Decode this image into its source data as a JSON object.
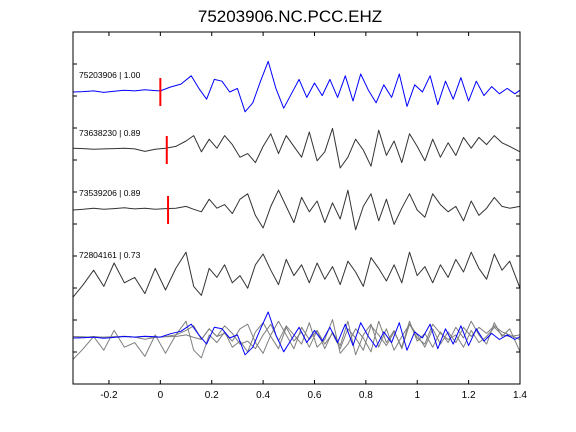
{
  "chart_data": {
    "type": "line",
    "title": "75203906.NC.PCC.EHZ",
    "xlabel": "",
    "ylabel": "",
    "xlim": [
      -0.34,
      1.4
    ],
    "xticks": [
      -0.2,
      0,
      0.2,
      0.4,
      0.6,
      0.8,
      1,
      1.2,
      1.4
    ],
    "xtick_labels": [
      "-0.2",
      "0",
      "0.2",
      "0.4",
      "0.6",
      "0.8",
      "1",
      "1.2",
      "1.4"
    ],
    "grid": false,
    "legend": "none",
    "colors": {
      "reference": "#0000ff",
      "other": "#333333",
      "overlay_other": "#7f7f7f",
      "pick": "#ff0000"
    },
    "series": [
      {
        "label": "75203906 | 1.00",
        "color": "#0000ff",
        "pick_time": 0.0,
        "x": [
          -0.34,
          -0.3,
          -0.26,
          -0.22,
          -0.18,
          -0.14,
          -0.1,
          -0.06,
          -0.02,
          0,
          0.04,
          0.08,
          0.12,
          0.15,
          0.18,
          0.21,
          0.24,
          0.27,
          0.3,
          0.33,
          0.36,
          0.39,
          0.42,
          0.45,
          0.48,
          0.51,
          0.54,
          0.57,
          0.6,
          0.63,
          0.66,
          0.69,
          0.72,
          0.75,
          0.78,
          0.81,
          0.84,
          0.87,
          0.9,
          0.93,
          0.96,
          0.99,
          1.02,
          1.05,
          1.08,
          1.11,
          1.14,
          1.17,
          1.2,
          1.23,
          1.26,
          1.29,
          1.32,
          1.35,
          1.38,
          1.4
        ],
        "y": [
          0,
          0.01,
          0.03,
          -0.01,
          0.02,
          0.05,
          0.03,
          0.06,
          0.04,
          0.03,
          0.14,
          0.22,
          0.45,
          0.1,
          -0.2,
          0.35,
          0.3,
          0.0,
          0.1,
          -0.55,
          -0.3,
          0.3,
          0.85,
          0.1,
          -0.45,
          -0.05,
          0.35,
          -0.15,
          0.25,
          -0.1,
          0.35,
          -0.15,
          0.45,
          -0.25,
          0.5,
          0.05,
          -0.3,
          0.2,
          -0.15,
          0.5,
          -0.4,
          0.2,
          0.0,
          0.45,
          -0.35,
          0.3,
          -0.2,
          0.4,
          -0.25,
          0.3,
          -0.1,
          0.15,
          -0.05,
          0.1,
          -0.05,
          0.05
        ]
      },
      {
        "label": "73638230 | 0.89",
        "color": "#333333",
        "pick_time": 0.025,
        "x": [
          -0.34,
          -0.3,
          -0.26,
          -0.22,
          -0.18,
          -0.14,
          -0.1,
          -0.06,
          -0.02,
          0.02,
          0.06,
          0.1,
          0.13,
          0.16,
          0.19,
          0.22,
          0.25,
          0.28,
          0.31,
          0.34,
          0.37,
          0.4,
          0.43,
          0.46,
          0.49,
          0.52,
          0.55,
          0.58,
          0.61,
          0.64,
          0.67,
          0.7,
          0.73,
          0.76,
          0.79,
          0.82,
          0.85,
          0.88,
          0.91,
          0.94,
          0.97,
          1.0,
          1.03,
          1.06,
          1.09,
          1.12,
          1.15,
          1.18,
          1.21,
          1.24,
          1.27,
          1.3,
          1.33,
          1.36,
          1.4
        ],
        "y": [
          0.05,
          0.04,
          0.02,
          0.03,
          0.04,
          0.05,
          0.03,
          -0.04,
          0.02,
          0.05,
          0.1,
          0.25,
          0.4,
          -0.05,
          0.3,
          0.05,
          0.4,
          0.15,
          -0.2,
          -0.1,
          -0.35,
          0.1,
          0.45,
          -0.1,
          0.4,
          0.1,
          -0.2,
          0.5,
          -0.3,
          -0.05,
          0.6,
          -0.5,
          -0.2,
          0.3,
          0.0,
          -0.45,
          0.55,
          -0.15,
          0.25,
          -0.35,
          0.45,
          0.1,
          -0.3,
          0.3,
          -0.2,
          0.2,
          -0.15,
          0.35,
          0.05,
          0.35,
          0.15,
          0.4,
          0.2,
          0.1,
          -0.05
        ]
      },
      {
        "label": "73539206 | 0.89",
        "color": "#333333",
        "pick_time": 0.03,
        "x": [
          -0.34,
          -0.3,
          -0.26,
          -0.22,
          -0.18,
          -0.14,
          -0.1,
          -0.06,
          -0.02,
          0.02,
          0.06,
          0.1,
          0.13,
          0.16,
          0.19,
          0.22,
          0.25,
          0.28,
          0.31,
          0.34,
          0.37,
          0.4,
          0.43,
          0.46,
          0.49,
          0.52,
          0.55,
          0.58,
          0.61,
          0.64,
          0.67,
          0.7,
          0.73,
          0.76,
          0.79,
          0.82,
          0.85,
          0.88,
          0.91,
          0.94,
          0.97,
          1.0,
          1.03,
          1.06,
          1.09,
          1.12,
          1.15,
          1.18,
          1.21,
          1.24,
          1.27,
          1.3,
          1.33,
          1.36,
          1.4
        ],
        "y": [
          0,
          0.02,
          0.05,
          0.02,
          0.04,
          0.06,
          0.03,
          0.05,
          0.02,
          0.04,
          0.05,
          0.1,
          0.02,
          -0.05,
          0.3,
          0.05,
          0.15,
          -0.1,
          0.3,
          0.45,
          -0.15,
          -0.5,
          0.1,
          0.55,
          0.1,
          -0.35,
          0.35,
          -0.05,
          0.25,
          -0.35,
          0.2,
          -0.25,
          0.55,
          -0.55,
          0.1,
          0.45,
          -0.3,
          0.3,
          -0.4,
          0.05,
          0.45,
          0.0,
          -0.2,
          0.45,
          0.15,
          -0.05,
          0.1,
          -0.3,
          0.25,
          -0.15,
          0.05,
          0.35,
          0.1,
          0.05,
          0.1
        ]
      },
      {
        "label": "72804161 | 0.73",
        "color": "#333333",
        "pick_time": null,
        "x": [
          -0.34,
          -0.3,
          -0.26,
          -0.22,
          -0.18,
          -0.14,
          -0.1,
          -0.06,
          -0.02,
          0.02,
          0.06,
          0.1,
          0.13,
          0.16,
          0.19,
          0.22,
          0.25,
          0.28,
          0.31,
          0.34,
          0.37,
          0.4,
          0.43,
          0.46,
          0.49,
          0.52,
          0.55,
          0.58,
          0.61,
          0.64,
          0.67,
          0.7,
          0.73,
          0.76,
          0.79,
          0.82,
          0.85,
          0.88,
          0.91,
          0.94,
          0.97,
          1.0,
          1.03,
          1.06,
          1.09,
          1.12,
          1.15,
          1.18,
          1.21,
          1.24,
          1.27,
          1.3,
          1.33,
          1.36,
          1.4
        ],
        "y": [
          -0.7,
          -0.35,
          0.05,
          -0.4,
          0.25,
          -0.3,
          -0.15,
          -0.6,
          0.1,
          -0.5,
          0.1,
          0.55,
          -0.4,
          -0.65,
          0.1,
          -0.15,
          0.2,
          -0.3,
          -0.1,
          -0.45,
          0.2,
          0.5,
          0.05,
          -0.35,
          0.35,
          -0.1,
          0.2,
          -0.3,
          0.25,
          -0.2,
          0.15,
          -0.35,
          0.3,
          0.0,
          -0.4,
          0.4,
          0.1,
          -0.25,
          0.2,
          -0.3,
          0.55,
          -0.1,
          0.15,
          -0.3,
          0.2,
          -0.15,
          0.35,
          0.0,
          0.55,
          0.1,
          -0.2,
          0.5,
          0.05,
          0.3,
          -0.45
        ]
      }
    ]
  }
}
